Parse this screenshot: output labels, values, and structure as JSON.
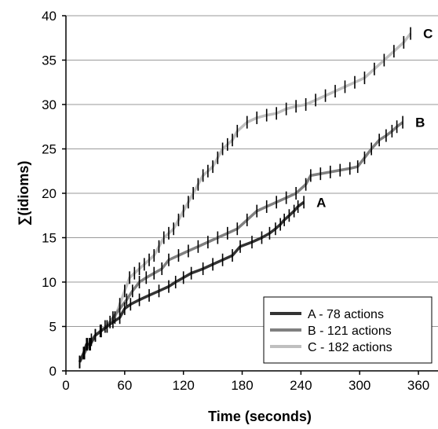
{
  "chart_data": {
    "type": "line",
    "title": "",
    "xlabel": "Time (seconds)",
    "ylabel": "∑(idioms)",
    "xlim": [
      0,
      380
    ],
    "ylim": [
      0,
      40
    ],
    "xticks": [
      0,
      60,
      120,
      180,
      240,
      300,
      360
    ],
    "yticks": [
      0,
      5,
      10,
      15,
      20,
      25,
      30,
      35,
      40
    ],
    "grid": "horizontal",
    "legend_position": "bottom-right",
    "series": [
      {
        "name": "A - 78 actions",
        "end_label": "A",
        "color": "#333333",
        "x": [
          14,
          18,
          21,
          25,
          30,
          36,
          42,
          48,
          55,
          60,
          66,
          75,
          85,
          95,
          105,
          112,
          120,
          128,
          140,
          150,
          160,
          170,
          178,
          190,
          200,
          208,
          214,
          219,
          223,
          228,
          233,
          237,
          243
        ],
        "y": [
          1,
          2,
          3,
          3,
          4,
          4.5,
          5,
          5.5,
          6,
          7,
          7.5,
          8,
          8.5,
          9,
          9.5,
          10,
          10.5,
          11,
          11.5,
          12,
          12.5,
          13,
          14,
          14.5,
          15,
          15.5,
          16,
          16.5,
          17,
          17.5,
          18,
          18.5,
          19
        ]
      },
      {
        "name": "B - 121 actions",
        "end_label": "B",
        "color": "#808080",
        "x": [
          14,
          19,
          24,
          30,
          36,
          42,
          48,
          55,
          62,
          68,
          75,
          82,
          90,
          98,
          105,
          115,
          125,
          135,
          145,
          155,
          165,
          175,
          185,
          195,
          205,
          215,
          225,
          235,
          245,
          250,
          260,
          270,
          280,
          290,
          298,
          305,
          312,
          320,
          327,
          333,
          338,
          344
        ],
        "y": [
          1,
          2,
          3,
          4,
          4.5,
          5,
          6,
          7,
          8,
          9,
          10,
          10.5,
          11,
          11.5,
          12.5,
          13,
          13.5,
          14,
          14.5,
          15,
          15.5,
          16,
          17,
          18,
          18.5,
          19,
          19.5,
          20,
          21,
          22,
          22.2,
          22.4,
          22.6,
          22.8,
          23,
          24,
          25,
          26,
          26.5,
          27,
          27.5,
          28
        ]
      },
      {
        "name": "C - 182 actions",
        "end_label": "C",
        "color": "#bfbfbf",
        "x": [
          14,
          18,
          22,
          26,
          30,
          35,
          40,
          45,
          50,
          55,
          60,
          65,
          70,
          75,
          80,
          85,
          90,
          95,
          100,
          105,
          110,
          115,
          120,
          125,
          130,
          135,
          140,
          145,
          150,
          155,
          160,
          165,
          170,
          175,
          185,
          195,
          205,
          215,
          225,
          235,
          245,
          255,
          265,
          275,
          285,
          295,
          305,
          315,
          325,
          335,
          345,
          352
        ],
        "y": [
          1,
          2,
          3,
          3.5,
          4,
          4.5,
          5,
          5.5,
          6,
          7.5,
          9,
          10.5,
          11,
          11.5,
          12,
          12.5,
          13,
          14,
          15,
          15.5,
          16,
          17,
          18,
          19,
          20,
          21,
          22,
          22.5,
          23,
          24,
          25,
          25.5,
          26,
          27,
          28,
          28.5,
          28.8,
          29,
          29.5,
          29.8,
          30,
          30.5,
          31,
          31.5,
          32,
          32.5,
          33,
          34,
          35,
          36,
          37,
          38
        ]
      }
    ]
  }
}
